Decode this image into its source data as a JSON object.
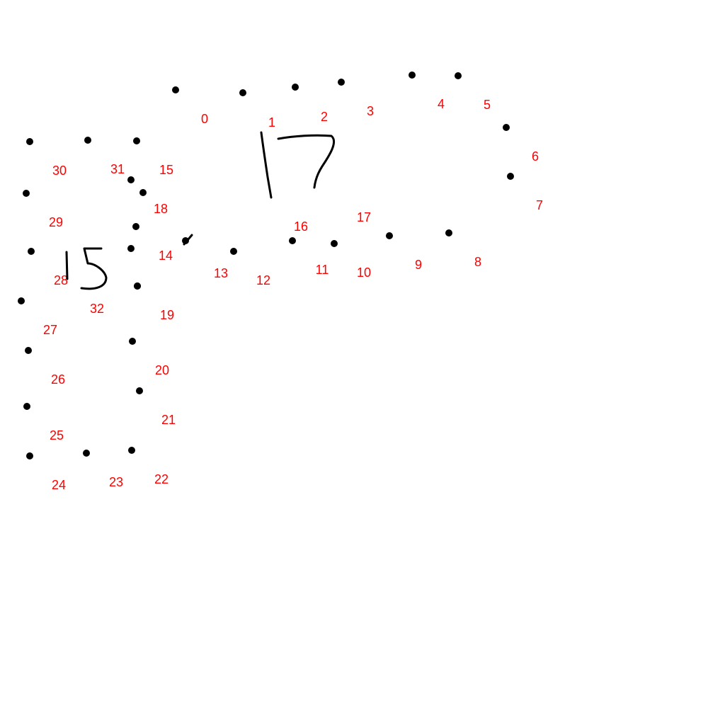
{
  "puzzle": {
    "dot_color": "#000000",
    "label_color": "#ff0000",
    "ink_color": "#000000",
    "dots": [
      {
        "label": "0"
      },
      {
        "label": "1"
      },
      {
        "label": "2"
      },
      {
        "label": "3"
      },
      {
        "label": "4"
      },
      {
        "label": "5"
      },
      {
        "label": "6"
      },
      {
        "label": "7"
      },
      {
        "label": "8"
      },
      {
        "label": "9"
      },
      {
        "label": "10"
      },
      {
        "label": "11"
      },
      {
        "label": "12"
      },
      {
        "label": "13"
      },
      {
        "label": "14"
      },
      {
        "label": "15"
      },
      {
        "label": "16"
      },
      {
        "label": "17"
      },
      {
        "label": "18"
      },
      {
        "label": "19"
      },
      {
        "label": "20"
      },
      {
        "label": "21"
      },
      {
        "label": "22"
      },
      {
        "label": "23"
      },
      {
        "label": "24"
      },
      {
        "label": "25"
      },
      {
        "label": "26"
      },
      {
        "label": "27"
      },
      {
        "label": "28"
      },
      {
        "label": "29"
      },
      {
        "label": "30"
      },
      {
        "label": "31"
      },
      {
        "label": "32"
      }
    ],
    "handwritten_marks": [
      {
        "name": "handwritten-17"
      },
      {
        "name": "handwritten-15"
      },
      {
        "name": "pen-stroke"
      }
    ]
  }
}
